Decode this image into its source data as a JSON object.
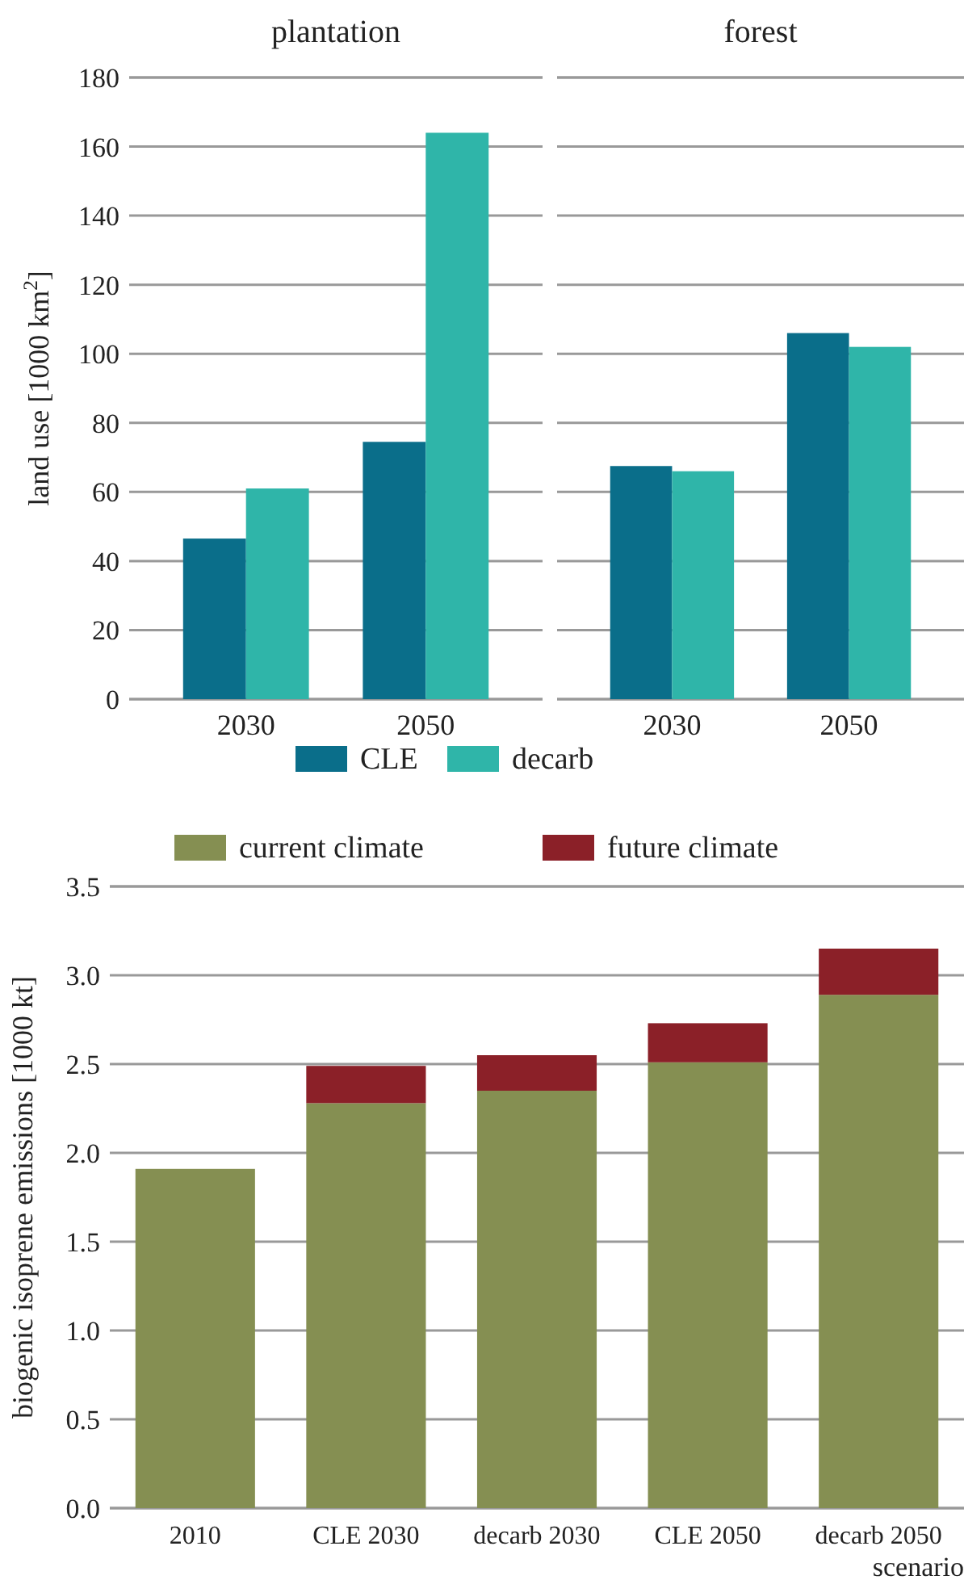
{
  "chart_data": [
    {
      "type": "bar",
      "title": "plantation",
      "ylabel": "land use [1000 km$^{2}$]",
      "categories": [
        "2030",
        "2050"
      ],
      "series": [
        {
          "name": "CLE",
          "color": "#0a6e8a",
          "values": [
            46.5,
            74.5
          ]
        },
        {
          "name": "decarb",
          "color": "#2fb5a9",
          "values": [
            61,
            164
          ]
        }
      ],
      "ylim": [
        0,
        180
      ],
      "yticks": [
        0,
        20,
        40,
        60,
        80,
        100,
        120,
        140,
        160,
        180
      ],
      "grid": "y",
      "legend": "bottom"
    },
    {
      "type": "bar",
      "title": "forest",
      "categories": [
        "2030",
        "2050"
      ],
      "series": [
        {
          "color": "#0a6e8a",
          "values": [
            67.5,
            106
          ]
        },
        {
          "color": "#2fb5a9",
          "values": [
            66,
            102
          ]
        }
      ],
      "ylim": [
        0,
        180
      ],
      "yticks": [
        0,
        20,
        40,
        60,
        80,
        100,
        120,
        140,
        160,
        180
      ],
      "grid": "y",
      "tick_labels": "x"
    },
    {
      "type": "bar",
      "stacked": true,
      "xlabel": "scenario",
      "ylabel": "biogenic isoprene emissions [1000 kt]",
      "categories": [
        "2010",
        "CLE 2030",
        "decarb 2030",
        "CLE 2050",
        "decarb 2050"
      ],
      "series": [
        {
          "name": "current climate",
          "color": "#858f52",
          "values": [
            1.91,
            2.28,
            2.35,
            2.51,
            2.89
          ]
        },
        {
          "name": "future climate",
          "color": "#8b2028",
          "values": [
            null,
            0.21,
            0.2,
            0.22,
            0.26
          ]
        }
      ],
      "ylim": [
        0,
        3.5
      ],
      "yticks": [
        {
          "value": 0,
          "label": "0.0"
        },
        0.5,
        {
          "value": 1,
          "label": "1.0"
        },
        1.5,
        {
          "value": 2,
          "label": "2.0"
        },
        2.5,
        {
          "value": 3,
          "label": "3.0"
        },
        3.5
      ],
      "grid": "y",
      "legend": "top"
    }
  ]
}
